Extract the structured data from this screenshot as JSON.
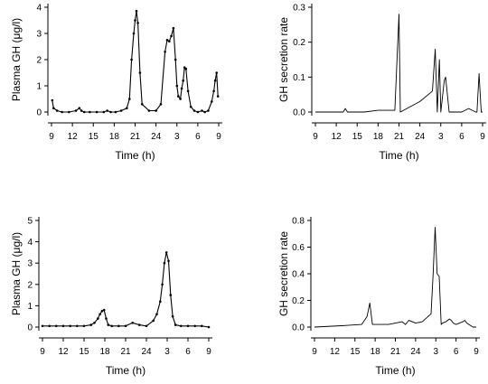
{
  "chart_data": [
    {
      "type": "line",
      "ylabel": "Plasma GH (μg/l)",
      "xlabel": "Time (h)",
      "xticks": [
        "9",
        "12",
        "15",
        "18",
        "21",
        "24",
        "3",
        "6",
        "9"
      ],
      "yticks": [
        "0",
        "1",
        "2",
        "3",
        "4"
      ],
      "xlim": [
        9,
        33
      ],
      "ylim": [
        0,
        4
      ],
      "markers": true,
      "series": [
        {
          "x": [
            9.1,
            9.3,
            9.8,
            10.5,
            11.5,
            12.5,
            13.0,
            13.3,
            13.7,
            14.5,
            15.5,
            16.5,
            17.0,
            17.5,
            18.2,
            19.0,
            19.8,
            20.2,
            20.5,
            20.8,
            21.0,
            21.2,
            21.4,
            21.7,
            22.0,
            23.0,
            24.0,
            24.7,
            25.3,
            25.6,
            25.9,
            26.2,
            26.5,
            26.8,
            27.0,
            27.2,
            27.5,
            27.7,
            27.9,
            28.1,
            28.3,
            28.6,
            29.0,
            29.5,
            30.0,
            30.6,
            31.0,
            31.5,
            32.0,
            32.3,
            32.5,
            32.7,
            32.9
          ],
          "y": [
            0.45,
            0.15,
            0.05,
            0.0,
            0.0,
            0.05,
            0.15,
            0.05,
            0.0,
            0.0,
            0.0,
            0.0,
            0.05,
            0.0,
            0.0,
            0.05,
            0.15,
            0.5,
            2.0,
            3.0,
            3.5,
            3.85,
            3.4,
            1.5,
            0.3,
            0.05,
            0.05,
            0.3,
            2.3,
            2.75,
            2.7,
            2.9,
            3.2,
            2.0,
            1.0,
            0.6,
            0.5,
            0.9,
            1.2,
            1.7,
            1.65,
            0.8,
            0.2,
            0.05,
            0.0,
            0.05,
            0.0,
            0.05,
            0.4,
            0.8,
            1.2,
            1.5,
            0.6
          ]
        }
      ]
    },
    {
      "type": "line",
      "ylabel": "GH secretion rate",
      "xlabel": "Time (h)",
      "xticks": [
        "9",
        "12",
        "15",
        "18",
        "21",
        "24",
        "3",
        "6",
        "9"
      ],
      "yticks": [
        "0.0",
        "0.1",
        "0.2",
        "0.3"
      ],
      "xlim": [
        9,
        33
      ],
      "ylim": [
        0,
        0.3
      ],
      "markers": false,
      "series": [
        {
          "x": [
            9.0,
            12.0,
            13.0,
            13.3,
            13.6,
            16.0,
            18.0,
            20.0,
            20.4,
            21.0,
            21.2,
            24.0,
            25.8,
            26.2,
            26.5,
            26.8,
            27.0,
            27.5,
            27.7,
            28.2,
            28.4,
            28.8,
            30.0,
            31.0,
            32.0,
            32.2,
            32.5,
            32.8,
            33.0
          ],
          "y": [
            0.0,
            0.0,
            0.0,
            0.01,
            0.0,
            0.0,
            0.005,
            0.005,
            0.005,
            0.28,
            0.0,
            0.03,
            0.06,
            0.18,
            0.0,
            0.15,
            0.0,
            0.09,
            0.1,
            0.0,
            0.0,
            0.0,
            0.0,
            0.01,
            0.0,
            0.0,
            0.11,
            0.0,
            0.0
          ]
        }
      ]
    },
    {
      "type": "line",
      "ylabel": "Plasma GH (μg/l)",
      "xlabel": "Time (h)",
      "xticks": [
        "9",
        "12",
        "15",
        "18",
        "21",
        "24",
        "3",
        "6",
        "9"
      ],
      "yticks": [
        "0",
        "1",
        "2",
        "3",
        "4",
        "5"
      ],
      "xlim": [
        9,
        33
      ],
      "ylim": [
        0,
        5
      ],
      "markers": true,
      "series": [
        {
          "x": [
            9.0,
            10.0,
            11.0,
            12.0,
            13.0,
            14.0,
            15.0,
            16.0,
            16.5,
            17.0,
            17.3,
            17.6,
            17.9,
            18.2,
            18.5,
            19.0,
            20.0,
            21.0,
            22.0,
            23.0,
            24.0,
            25.0,
            25.5,
            26.0,
            26.3,
            26.6,
            26.9,
            27.2,
            27.5,
            27.8,
            28.2,
            29.0,
            30.0,
            31.0,
            32.0,
            33.0
          ],
          "y": [
            0.05,
            0.05,
            0.05,
            0.05,
            0.05,
            0.05,
            0.05,
            0.1,
            0.2,
            0.4,
            0.6,
            0.75,
            0.8,
            0.4,
            0.1,
            0.05,
            0.05,
            0.05,
            0.2,
            0.1,
            0.05,
            0.3,
            0.6,
            1.2,
            2.0,
            3.0,
            3.5,
            3.1,
            1.5,
            0.5,
            0.1,
            0.05,
            0.05,
            0.05,
            0.05,
            0.0
          ]
        }
      ]
    },
    {
      "type": "line",
      "ylabel": "GH secretion rate",
      "xlabel": "Time (h)",
      "xticks": [
        "9",
        "12",
        "15",
        "18",
        "21",
        "24",
        "3",
        "6",
        "9"
      ],
      "yticks": [
        "0.0",
        "0.2",
        "0.4",
        "0.6",
        "0.8"
      ],
      "xlim": [
        9,
        33
      ],
      "ylim": [
        0,
        0.8
      ],
      "markers": false,
      "series": [
        {
          "x": [
            9.0,
            13.0,
            16.0,
            16.8,
            17.2,
            17.6,
            18.0,
            20.0,
            22.0,
            22.5,
            23.0,
            24.0,
            25.0,
            26.3,
            26.6,
            26.9,
            27.2,
            27.5,
            27.8,
            28.0,
            28.5,
            29.0,
            29.3,
            29.6,
            30.0,
            31.0,
            31.3,
            31.6,
            32.5,
            33.0
          ],
          "y": [
            0.0,
            0.01,
            0.02,
            0.08,
            0.18,
            0.02,
            0.02,
            0.02,
            0.04,
            0.02,
            0.05,
            0.03,
            0.04,
            0.1,
            0.4,
            0.75,
            0.4,
            0.38,
            0.02,
            0.03,
            0.04,
            0.06,
            0.05,
            0.03,
            0.02,
            0.04,
            0.05,
            0.03,
            0.0,
            0.0
          ]
        }
      ]
    }
  ]
}
